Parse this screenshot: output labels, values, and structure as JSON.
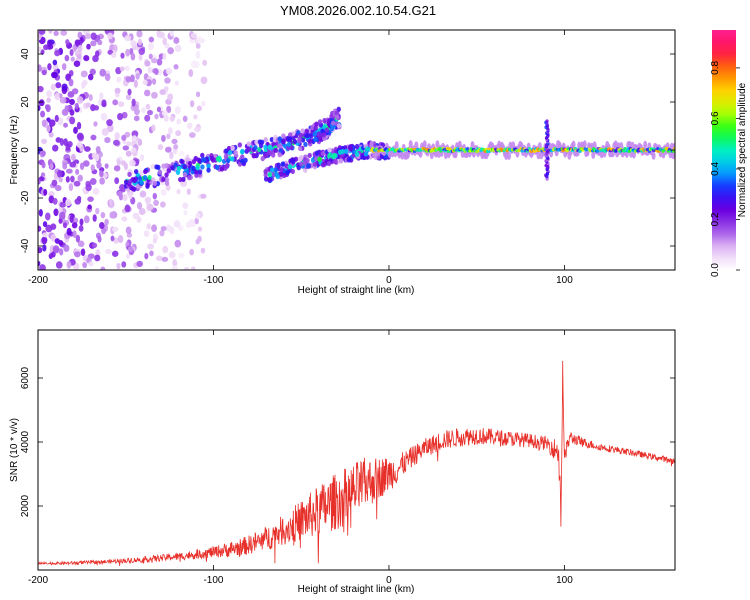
{
  "figure_title": "YM08.2026.002.10.54.G21",
  "colorbar": {
    "label": "Normalized spectral amplitude",
    "ticks": [
      "0.0",
      "0.2",
      "0.4",
      "0.6",
      "0.8"
    ],
    "tick_values": [
      0.0,
      0.2,
      0.4,
      0.6,
      0.8
    ],
    "range": [
      0.0,
      0.95
    ],
    "colormap": [
      "#ffffff",
      "#e8c8f4",
      "#a050e8",
      "#6a00e0",
      "#1d1bff",
      "#00b4ff",
      "#00f0c0",
      "#18ff18",
      "#c8ff00",
      "#ffd000",
      "#ff7000",
      "#ff1050",
      "#ff2090"
    ]
  },
  "chart_data": [
    {
      "type": "heatmap",
      "title": "YM08.2026.002.10.54.G21",
      "xlabel": "Height of straight line (km)",
      "ylabel": "Frequency (Hz)",
      "xlim": [
        -200,
        163
      ],
      "ylim": [
        -50,
        50
      ],
      "xticks": [
        -200,
        -100,
        0,
        100
      ],
      "xtick_labels": [
        "-200",
        "-100",
        "0",
        "100"
      ],
      "yticks": [
        -40,
        -20,
        0,
        20,
        40
      ],
      "ytick_labels": [
        "-40",
        "-20",
        "0",
        "20",
        "40"
      ],
      "colorbar_label": "Normalized spectral amplitude",
      "features": [
        {
          "name": "diffuse noise",
          "x_range": [
            -200,
            -105
          ],
          "freq_range": [
            -50,
            50
          ],
          "amplitude": 0.12
        },
        {
          "name": "main rising branch",
          "points": [
            [
              -150,
              -13
            ],
            [
              -120,
              -9
            ],
            [
              -100,
              -5
            ],
            [
              -80,
              -1
            ],
            [
              -60,
              2
            ],
            [
              -45,
              6
            ],
            [
              -35,
              9
            ],
            [
              -28,
              14
            ]
          ],
          "amplitude": 0.35
        },
        {
          "name": "secondary branch",
          "points": [
            [
              -70,
              -11
            ],
            [
              -55,
              -7
            ],
            [
              -40,
              -4
            ],
            [
              -30,
              -2
            ],
            [
              -20,
              -1
            ],
            [
              -10,
              0
            ],
            [
              0,
              -1
            ]
          ],
          "amplitude": 0.35
        },
        {
          "name": "zero-frequency line",
          "points": [
            [
              -10,
              0
            ],
            [
              0,
              0
            ],
            [
              50,
              0
            ],
            [
              100,
              0
            ],
            [
              163,
              0
            ]
          ],
          "amplitude": 0.6
        },
        {
          "name": "spike",
          "x": 90,
          "freq_range": [
            -12,
            12
          ],
          "amplitude": 0.25
        }
      ]
    },
    {
      "type": "line",
      "xlabel": "Height of straight line (km)",
      "ylabel": "SNR (10 * v/v)",
      "xlim": [
        -200,
        163
      ],
      "ylim": [
        0,
        7500
      ],
      "xticks": [
        -200,
        -100,
        0,
        100
      ],
      "xtick_labels": [
        "-200",
        "-100",
        "0",
        "100"
      ],
      "yticks": [
        2000,
        4000,
        6000
      ],
      "ytick_labels": [
        "2000",
        "4000",
        "6000"
      ],
      "series": [
        {
          "name": "SNR",
          "color": "#e8302a",
          "x": [
            -200,
            -180,
            -160,
            -140,
            -120,
            -100,
            -90,
            -80,
            -70,
            -60,
            -50,
            -40,
            -30,
            -20,
            -15,
            -10,
            -5,
            0,
            5,
            10,
            20,
            30,
            40,
            50,
            60,
            70,
            80,
            90,
            93,
            96,
            97,
            98,
            99,
            100,
            103,
            110,
            120,
            140,
            163
          ],
          "y": [
            200,
            220,
            260,
            330,
            420,
            560,
            650,
            780,
            980,
            1250,
            1550,
            1850,
            2150,
            2450,
            2650,
            2780,
            2900,
            3000,
            3150,
            3400,
            3800,
            4050,
            4150,
            4200,
            4150,
            4100,
            4050,
            3950,
            3850,
            3700,
            3900,
            1500,
            6500,
            3500,
            4150,
            4000,
            3850,
            3650,
            3400
          ],
          "noise": [
            40,
            50,
            60,
            90,
            120,
            180,
            250,
            300,
            380,
            480,
            650,
            800,
            900,
            900,
            850,
            750,
            650,
            550,
            450,
            350,
            300,
            300,
            300,
            280,
            260,
            240,
            220,
            220,
            300,
            400,
            600,
            800,
            800,
            300,
            200,
            150,
            120,
            100,
            90
          ]
        }
      ]
    }
  ]
}
